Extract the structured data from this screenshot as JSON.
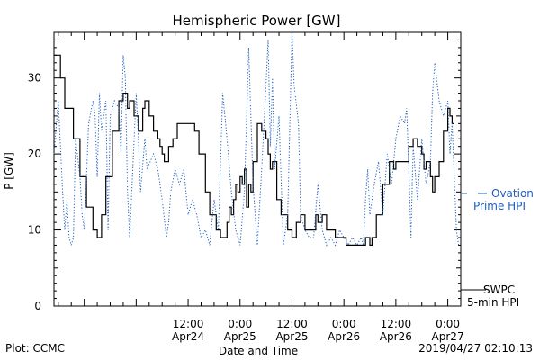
{
  "chart_data": {
    "type": "line",
    "title": "Hemispheric Power [GW]",
    "ylabel": "P [GW]",
    "xlabel": "Date and Time",
    "ylim": [
      0,
      36
    ],
    "xlim": [
      "2019-04-23 05:00",
      "2019-04-27 03:00"
    ],
    "yticks": [
      0,
      10,
      20,
      30
    ],
    "xticks": [
      {
        "line1": "12:00",
        "line2": "Apr24",
        "x": "2019-04-24 12:00"
      },
      {
        "line1": "0:00",
        "line2": "Apr25",
        "x": "2019-04-25 00:00"
      },
      {
        "line1": "12:00",
        "line2": "Apr25",
        "x": "2019-04-25 12:00"
      },
      {
        "line1": "0:00",
        "line2": "Apr26",
        "x": "2019-04-26 00:00"
      },
      {
        "line1": "12:00",
        "line2": "Apr26",
        "x": "2019-04-26 12:00"
      },
      {
        "line1": "0:00",
        "line2": "Apr27",
        "x": "2019-04-27 00:00"
      }
    ],
    "series": [
      {
        "name": "SWPC 5-min HPI",
        "color": "#000000",
        "style": "solid",
        "points": [
          [
            "2019-04-23 05:00",
            33
          ],
          [
            "2019-04-23 06:00",
            33
          ],
          [
            "2019-04-23 06:30",
            30
          ],
          [
            "2019-04-23 07:30",
            26
          ],
          [
            "2019-04-23 08:30",
            26
          ],
          [
            "2019-04-23 09:30",
            22
          ],
          [
            "2019-04-23 11:00",
            17
          ],
          [
            "2019-04-23 12:30",
            13
          ],
          [
            "2019-04-23 14:00",
            10
          ],
          [
            "2019-04-23 15:00",
            9
          ],
          [
            "2019-04-23 16:00",
            12
          ],
          [
            "2019-04-23 17:00",
            17
          ],
          [
            "2019-04-23 18:30",
            23
          ],
          [
            "2019-04-23 20:00",
            27
          ],
          [
            "2019-04-23 21:00",
            28
          ],
          [
            "2019-04-23 22:00",
            26
          ],
          [
            "2019-04-23 22:30",
            27
          ],
          [
            "2019-04-23 23:30",
            25
          ],
          [
            "2019-04-24 00:30",
            23
          ],
          [
            "2019-04-24 01:30",
            26
          ],
          [
            "2019-04-24 02:00",
            27
          ],
          [
            "2019-04-24 03:00",
            25
          ],
          [
            "2019-04-24 04:00",
            23
          ],
          [
            "2019-04-24 05:00",
            22
          ],
          [
            "2019-04-24 05:30",
            21
          ],
          [
            "2019-04-24 06:00",
            20
          ],
          [
            "2019-04-24 06:30",
            19
          ],
          [
            "2019-04-24 07:30",
            21
          ],
          [
            "2019-04-24 08:30",
            22
          ],
          [
            "2019-04-24 09:30",
            24
          ],
          [
            "2019-04-24 12:30",
            24
          ],
          [
            "2019-04-24 13:30",
            23
          ],
          [
            "2019-04-24 14:30",
            20
          ],
          [
            "2019-04-24 16:00",
            15
          ],
          [
            "2019-04-24 17:00",
            12
          ],
          [
            "2019-04-24 18:30",
            10
          ],
          [
            "2019-04-24 19:30",
            9
          ],
          [
            "2019-04-24 20:00",
            9
          ],
          [
            "2019-04-24 21:00",
            11
          ],
          [
            "2019-04-24 21:30",
            13
          ],
          [
            "2019-04-24 22:00",
            12
          ],
          [
            "2019-04-24 22:30",
            14
          ],
          [
            "2019-04-24 23:00",
            16
          ],
          [
            "2019-04-24 23:30",
            15
          ],
          [
            "2019-04-25 00:00",
            17
          ],
          [
            "2019-04-25 00:30",
            16
          ],
          [
            "2019-04-25 01:00",
            18
          ],
          [
            "2019-04-25 01:30",
            13
          ],
          [
            "2019-04-25 02:00",
            16
          ],
          [
            "2019-04-25 02:30",
            15
          ],
          [
            "2019-04-25 03:00",
            19
          ],
          [
            "2019-04-25 04:00",
            24
          ],
          [
            "2019-04-25 05:00",
            23
          ],
          [
            "2019-04-25 06:00",
            22
          ],
          [
            "2019-04-25 06:30",
            20
          ],
          [
            "2019-04-25 07:00",
            18
          ],
          [
            "2019-04-25 07:30",
            19
          ],
          [
            "2019-04-25 08:30",
            14
          ],
          [
            "2019-04-25 09:30",
            12
          ],
          [
            "2019-04-25 11:00",
            10
          ],
          [
            "2019-04-25 12:00",
            9
          ],
          [
            "2019-04-25 13:00",
            11
          ],
          [
            "2019-04-25 14:00",
            12
          ],
          [
            "2019-04-25 15:00",
            10
          ],
          [
            "2019-04-25 16:30",
            10
          ],
          [
            "2019-04-25 17:30",
            12
          ],
          [
            "2019-04-25 18:00",
            11
          ],
          [
            "2019-04-25 19:00",
            12
          ],
          [
            "2019-04-25 20:00",
            10
          ],
          [
            "2019-04-25 21:00",
            10
          ],
          [
            "2019-04-25 22:00",
            9
          ],
          [
            "2019-04-25 23:00",
            9
          ],
          [
            "2019-04-26 00:00",
            9
          ],
          [
            "2019-04-26 00:30",
            8
          ],
          [
            "2019-04-26 04:00",
            8
          ],
          [
            "2019-04-26 05:00",
            9
          ],
          [
            "2019-04-26 06:00",
            8
          ],
          [
            "2019-04-26 06:30",
            9
          ],
          [
            "2019-04-26 07:30",
            12
          ],
          [
            "2019-04-26 09:00",
            16
          ],
          [
            "2019-04-26 10:30",
            19
          ],
          [
            "2019-04-26 11:30",
            18
          ],
          [
            "2019-04-26 12:00",
            19
          ],
          [
            "2019-04-26 14:00",
            19
          ],
          [
            "2019-04-26 15:00",
            21
          ],
          [
            "2019-04-26 16:00",
            22
          ],
          [
            "2019-04-26 17:00",
            21
          ],
          [
            "2019-04-26 18:00",
            20
          ],
          [
            "2019-04-26 18:30",
            18
          ],
          [
            "2019-04-26 19:00",
            19
          ],
          [
            "2019-04-26 20:00",
            17
          ],
          [
            "2019-04-26 20:30",
            15
          ],
          [
            "2019-04-26 21:00",
            17
          ],
          [
            "2019-04-26 22:00",
            19
          ],
          [
            "2019-04-26 23:00",
            23
          ],
          [
            "2019-04-27 00:00",
            26
          ],
          [
            "2019-04-27 00:30",
            25
          ],
          [
            "2019-04-27 01:00",
            24
          ],
          [
            "2019-04-27 01:30",
            24
          ]
        ]
      },
      {
        "name": "Ovation Prime HPI",
        "color": "#1f5fbf",
        "style": "dotted",
        "points": [
          [
            "2019-04-23 05:00",
            20
          ],
          [
            "2019-04-23 06:00",
            27
          ],
          [
            "2019-04-23 07:00",
            15
          ],
          [
            "2019-04-23 07:30",
            10
          ],
          [
            "2019-04-23 08:00",
            14
          ],
          [
            "2019-04-23 08:30",
            9
          ],
          [
            "2019-04-23 09:00",
            8
          ],
          [
            "2019-04-23 09:30",
            9
          ],
          [
            "2019-04-23 10:00",
            22
          ],
          [
            "2019-04-23 11:00",
            17
          ],
          [
            "2019-04-23 11:30",
            12
          ],
          [
            "2019-04-23 12:00",
            10
          ],
          [
            "2019-04-23 13:00",
            24
          ],
          [
            "2019-04-23 14:00",
            27
          ],
          [
            "2019-04-23 14:30",
            25
          ],
          [
            "2019-04-23 15:00",
            17
          ],
          [
            "2019-04-23 15:30",
            28
          ],
          [
            "2019-04-23 16:00",
            23
          ],
          [
            "2019-04-23 17:00",
            27
          ],
          [
            "2019-04-23 17:30",
            10
          ],
          [
            "2019-04-23 18:00",
            25
          ],
          [
            "2019-04-23 19:00",
            27
          ],
          [
            "2019-04-23 20:00",
            26
          ],
          [
            "2019-04-23 20:30",
            20
          ],
          [
            "2019-04-23 21:00",
            33
          ],
          [
            "2019-04-23 21:30",
            30
          ],
          [
            "2019-04-23 22:00",
            15
          ],
          [
            "2019-04-23 22:30",
            9
          ],
          [
            "2019-04-24 00:00",
            28
          ],
          [
            "2019-04-24 00:30",
            22
          ],
          [
            "2019-04-24 01:00",
            15
          ],
          [
            "2019-04-24 02:00",
            22
          ],
          [
            "2019-04-24 02:30",
            18
          ],
          [
            "2019-04-24 04:00",
            20
          ],
          [
            "2019-04-24 05:00",
            18
          ],
          [
            "2019-04-24 06:00",
            14
          ],
          [
            "2019-04-24 07:00",
            9
          ],
          [
            "2019-04-24 07:30",
            11
          ],
          [
            "2019-04-24 08:00",
            15
          ],
          [
            "2019-04-24 09:00",
            18
          ],
          [
            "2019-04-24 10:00",
            16
          ],
          [
            "2019-04-24 11:00",
            18
          ],
          [
            "2019-04-24 12:00",
            12
          ],
          [
            "2019-04-24 13:00",
            14
          ],
          [
            "2019-04-24 14:00",
            12
          ],
          [
            "2019-04-24 15:00",
            9
          ],
          [
            "2019-04-24 16:00",
            10
          ],
          [
            "2019-04-24 17:00",
            8
          ],
          [
            "2019-04-24 18:00",
            14
          ],
          [
            "2019-04-24 19:00",
            10
          ],
          [
            "2019-04-24 20:00",
            28
          ],
          [
            "2019-04-24 21:00",
            22
          ],
          [
            "2019-04-24 22:00",
            15
          ],
          [
            "2019-04-24 23:00",
            10
          ],
          [
            "2019-04-25 00:00",
            8
          ],
          [
            "2019-04-25 01:00",
            15
          ],
          [
            "2019-04-25 02:00",
            34
          ],
          [
            "2019-04-25 03:00",
            16
          ],
          [
            "2019-04-25 04:00",
            8
          ],
          [
            "2019-04-25 05:00",
            18
          ],
          [
            "2019-04-25 06:00",
            29
          ],
          [
            "2019-04-25 06:30",
            35
          ],
          [
            "2019-04-25 07:00",
            21
          ],
          [
            "2019-04-25 07:30",
            30
          ],
          [
            "2019-04-25 08:00",
            18
          ],
          [
            "2019-04-25 09:00",
            25
          ],
          [
            "2019-04-25 10:00",
            8
          ],
          [
            "2019-04-25 11:00",
            12
          ],
          [
            "2019-04-25 12:00",
            36
          ],
          [
            "2019-04-25 12:30",
            29
          ],
          [
            "2019-04-25 13:30",
            24
          ],
          [
            "2019-04-25 14:00",
            12
          ],
          [
            "2019-04-25 15:00",
            10
          ],
          [
            "2019-04-25 16:00",
            9
          ],
          [
            "2019-04-25 17:00",
            9
          ],
          [
            "2019-04-25 18:00",
            16
          ],
          [
            "2019-04-25 19:00",
            10
          ],
          [
            "2019-04-25 20:00",
            8
          ],
          [
            "2019-04-25 21:00",
            9
          ],
          [
            "2019-04-25 22:00",
            8
          ],
          [
            "2019-04-25 23:00",
            10
          ],
          [
            "2019-04-26 00:00",
            9
          ],
          [
            "2019-04-26 01:00",
            8
          ],
          [
            "2019-04-26 02:00",
            9
          ],
          [
            "2019-04-26 03:00",
            8
          ],
          [
            "2019-04-26 04:00",
            9
          ],
          [
            "2019-04-26 04:30",
            8
          ],
          [
            "2019-04-26 05:00",
            14
          ],
          [
            "2019-04-26 05:30",
            18
          ],
          [
            "2019-04-26 06:00",
            12
          ],
          [
            "2019-04-26 07:00",
            16
          ],
          [
            "2019-04-26 08:00",
            19
          ],
          [
            "2019-04-26 09:00",
            12
          ],
          [
            "2019-04-26 10:00",
            20
          ],
          [
            "2019-04-26 11:00",
            16
          ],
          [
            "2019-04-26 12:00",
            22
          ],
          [
            "2019-04-26 13:00",
            25
          ],
          [
            "2019-04-26 14:00",
            24
          ],
          [
            "2019-04-26 14:30",
            26
          ],
          [
            "2019-04-26 15:00",
            18
          ],
          [
            "2019-04-26 15:30",
            9
          ],
          [
            "2019-04-26 16:00",
            21
          ],
          [
            "2019-04-26 17:00",
            14
          ],
          [
            "2019-04-26 18:00",
            22
          ],
          [
            "2019-04-26 19:00",
            16
          ],
          [
            "2019-04-26 20:00",
            19
          ],
          [
            "2019-04-26 20:30",
            28
          ],
          [
            "2019-04-26 21:00",
            32
          ],
          [
            "2019-04-26 22:00",
            27
          ],
          [
            "2019-04-26 23:00",
            25
          ],
          [
            "2019-04-27 00:00",
            27
          ],
          [
            "2019-04-27 00:30",
            20
          ],
          [
            "2019-04-27 01:00",
            24
          ],
          [
            "2019-04-27 02:00",
            10
          ],
          [
            "2019-04-27 02:30",
            8
          ]
        ]
      }
    ],
    "legend": [
      {
        "line1": "SWPC",
        "line2": "5-min HPI",
        "color": "#000000",
        "position": "right-bottom"
      },
      {
        "line1": "Ovation",
        "line2": "Prime HPI",
        "color": "#1f5fbf",
        "position": "right-middle"
      }
    ]
  },
  "footer": {
    "left": "Plot: CCMC",
    "right": "2019/04/27 02:10:13"
  }
}
